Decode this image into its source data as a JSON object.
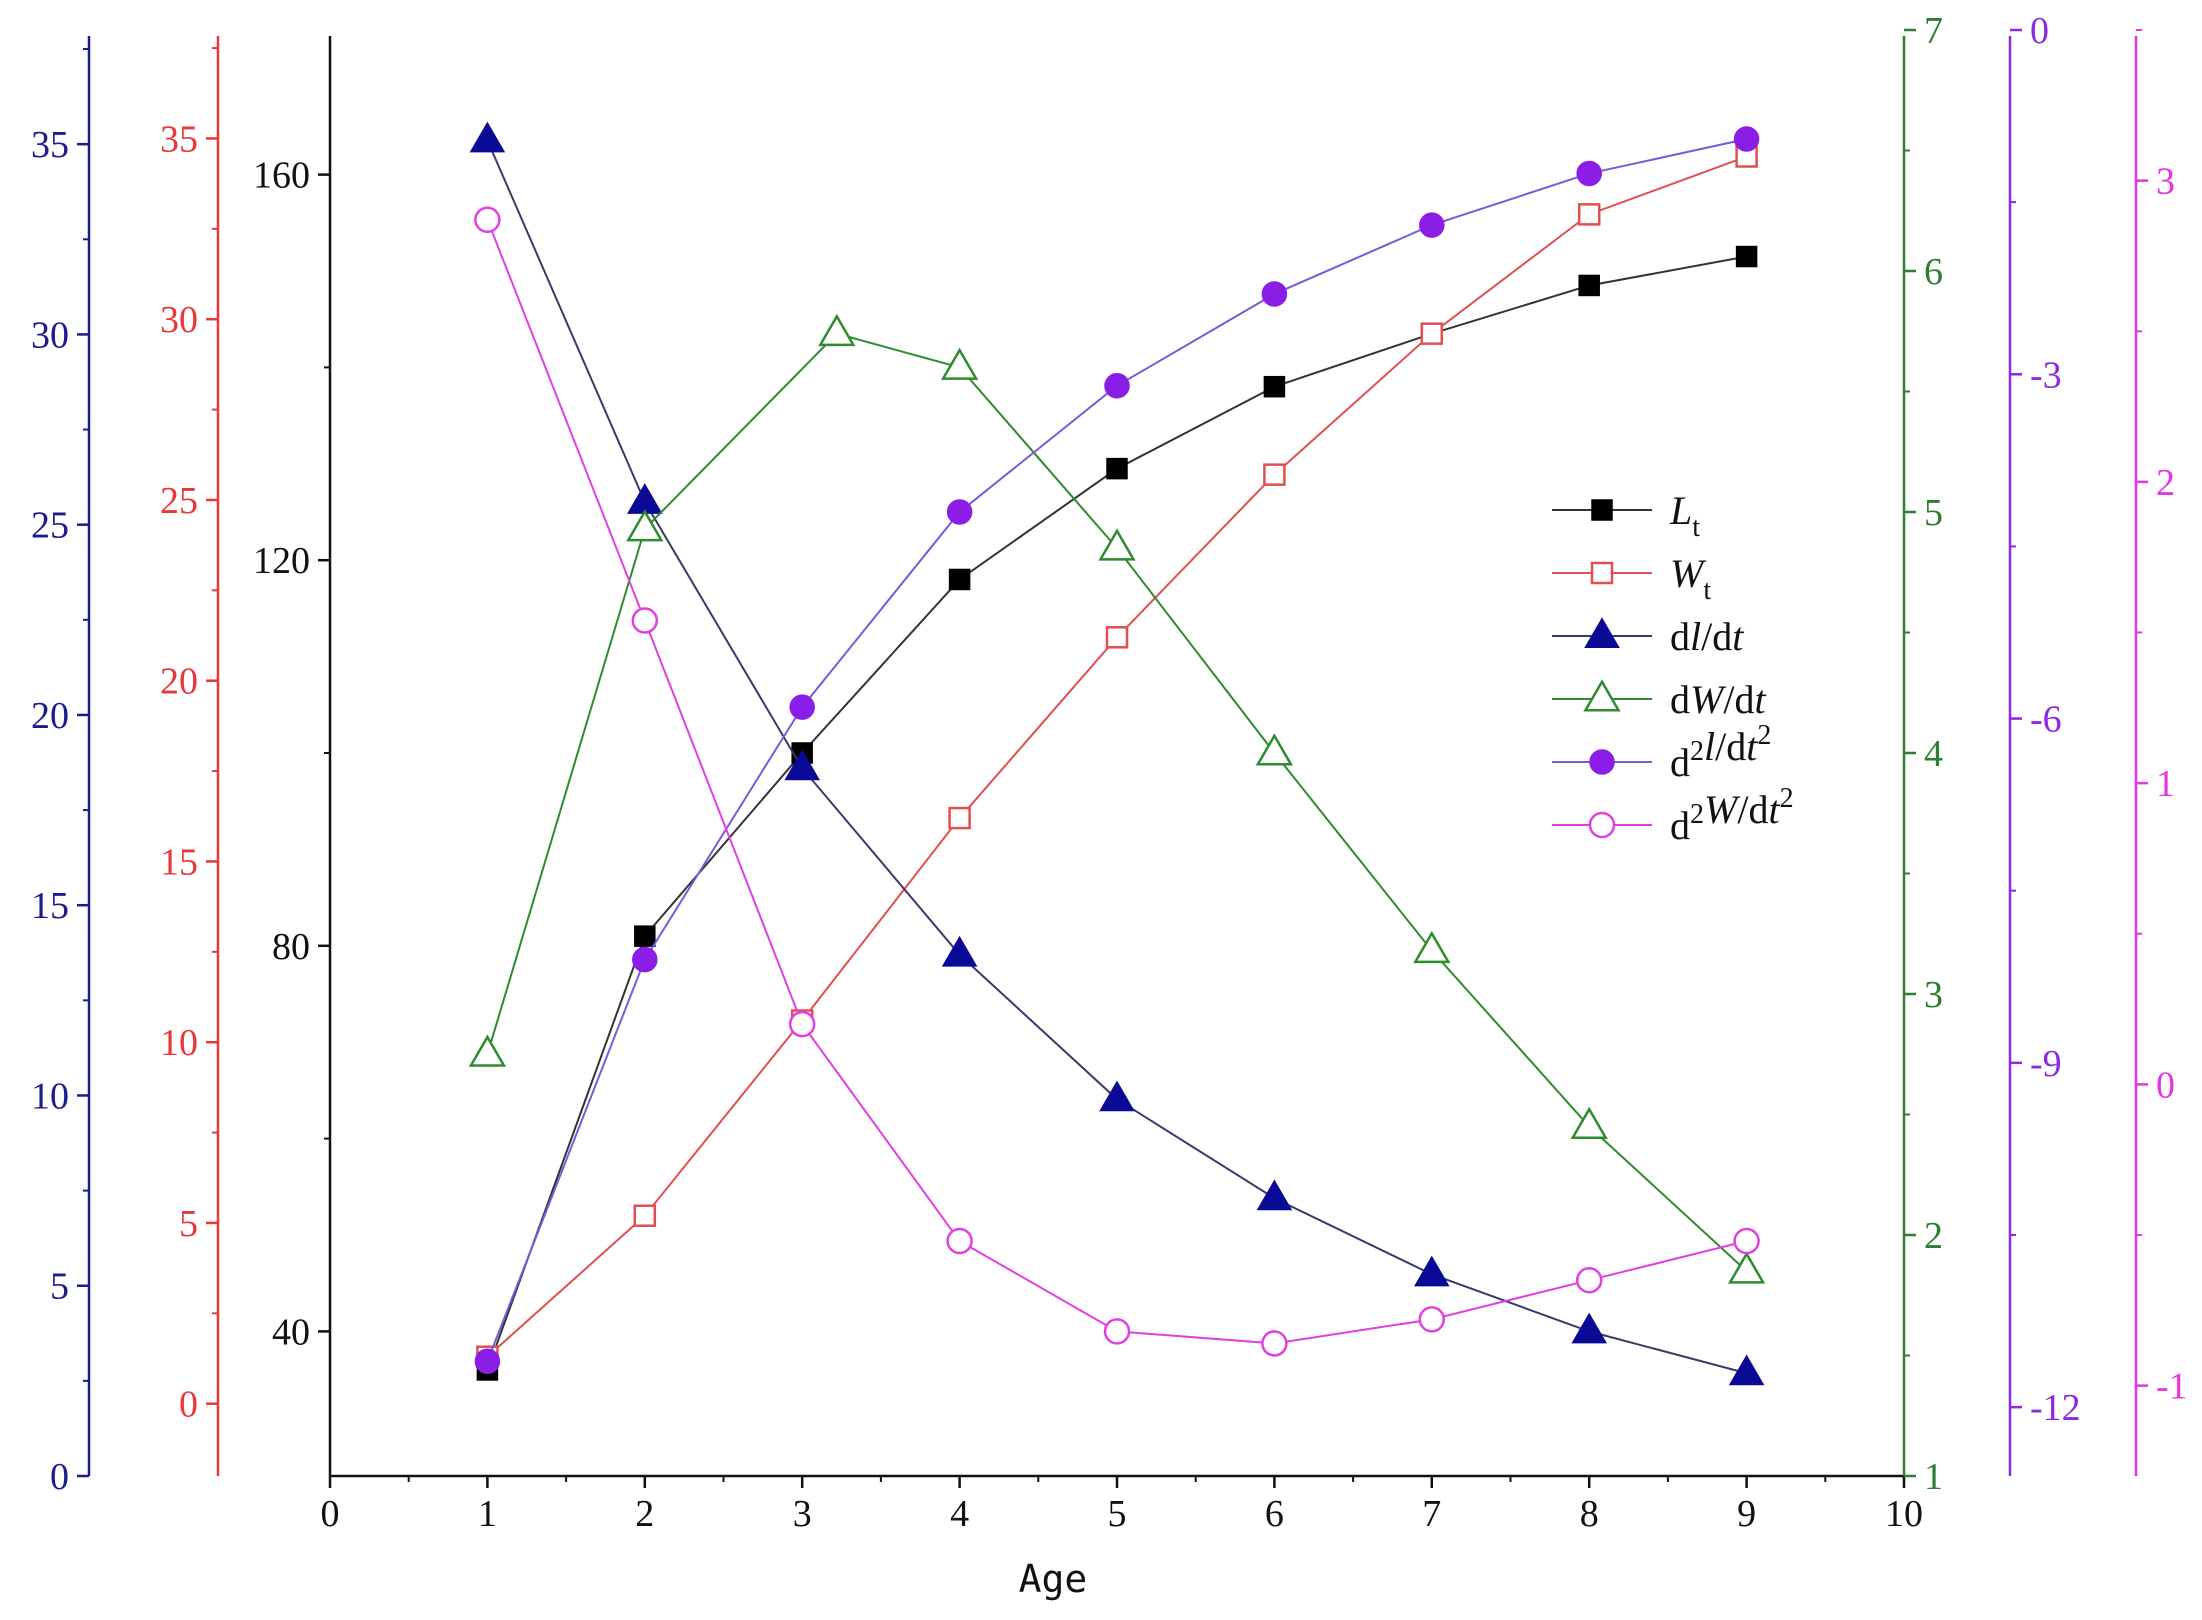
{
  "chart_data": {
    "type": "line",
    "xlabel": "Age",
    "x_axis": {
      "range": [
        0,
        10
      ],
      "ticks": [
        0,
        1,
        2,
        3,
        4,
        5,
        6,
        7,
        8,
        9,
        10
      ]
    },
    "x": [
      1,
      2,
      3,
      4,
      5,
      6,
      7,
      8,
      9
    ],
    "axes": [
      {
        "id": "dl",
        "side": "left",
        "color": "#1c1c8c",
        "range": [
          0,
          38
        ],
        "ticks": [
          0,
          5,
          10,
          15,
          20,
          25,
          30,
          35
        ],
        "minor": 2.5
      },
      {
        "id": "W",
        "side": "left",
        "color": "#e8383a",
        "range": [
          -2,
          38
        ],
        "ticks": [
          0,
          5,
          10,
          15,
          20,
          25,
          30,
          35
        ],
        "minor": 2.5
      },
      {
        "id": "L",
        "side": "left",
        "color": "#111111",
        "range": [
          25,
          175
        ],
        "ticks": [
          40,
          80,
          120,
          160
        ],
        "minor": 20
      },
      {
        "id": "dW",
        "side": "right",
        "color": "#2e7d32",
        "range": [
          1,
          7
        ],
        "ticks": [
          1,
          2,
          3,
          4,
          5,
          6,
          7
        ],
        "minor": 0.5
      },
      {
        "id": "d2l",
        "side": "right",
        "color": "#8a2be2",
        "range": [
          -12.6,
          0
        ],
        "ticks": [
          -12,
          -9,
          -6,
          -3,
          0
        ],
        "minor": 1.5
      },
      {
        "id": "d2W",
        "side": "right",
        "color": "#e535e5",
        "range": [
          -1.3,
          3.5
        ],
        "ticks": [
          -1,
          0,
          1,
          2,
          3
        ],
        "minor": 0.5
      }
    ],
    "series": [
      {
        "name": "Lt",
        "label_main": "L",
        "label_sub": "t",
        "axis": "L",
        "marker": "square",
        "filled": true,
        "color": "#000000",
        "line": "#333333",
        "values": [
          36,
          81,
          100,
          118,
          129.5,
          138,
          143.5,
          148.5,
          151.5
        ]
      },
      {
        "name": "Wt",
        "label_main": "W",
        "label_sub": "t",
        "axis": "W",
        "marker": "square",
        "filled": false,
        "color": "#e05050",
        "line": "#e05050",
        "values": [
          1.3,
          5.2,
          10.6,
          16.2,
          21.2,
          25.7,
          29.6,
          32.9,
          34.5
        ]
      },
      {
        "name": "dl/dt",
        "label_main": "dl/dt",
        "axis": "dl",
        "marker": "triangle",
        "filled": true,
        "color": "#0a0a96",
        "line": "#3a3a6a",
        "values": [
          35.1,
          25.6,
          18.6,
          13.7,
          9.9,
          7.3,
          5.3,
          3.8,
          2.7
        ]
      },
      {
        "name": "dW/dt",
        "label_main": "dW/dt",
        "axis": "dW",
        "marker": "triangle",
        "filled": false,
        "color": "#2e8b2e",
        "line": "#2e8b2e",
        "values": [
          2.75,
          4.93,
          null,
          5.6,
          4.85,
          4.0,
          3.18,
          2.45,
          1.85
        ],
        "peak": {
          "x": 3.22,
          "value": 5.74
        }
      },
      {
        "name": "d2l/dt2",
        "label_main": "d2l/dt2",
        "axis": "d2l",
        "marker": "circle",
        "filled": true,
        "color": "#8a1ee6",
        "line": "#7a5ad8",
        "values": [
          -11.6,
          -8.1,
          -5.9,
          -4.2,
          -3.1,
          -2.3,
          -1.7,
          -1.25,
          -0.95
        ]
      },
      {
        "name": "d2W/dt2",
        "label_main": "d2W/dt2",
        "axis": "d2W",
        "marker": "circle",
        "filled": false,
        "color": "#e040e0",
        "line": "#e040e0",
        "values": [
          2.87,
          1.54,
          0.2,
          -0.52,
          -0.82,
          -0.86,
          -0.78,
          -0.65,
          -0.52
        ]
      }
    ],
    "legend_position": "center-right"
  }
}
